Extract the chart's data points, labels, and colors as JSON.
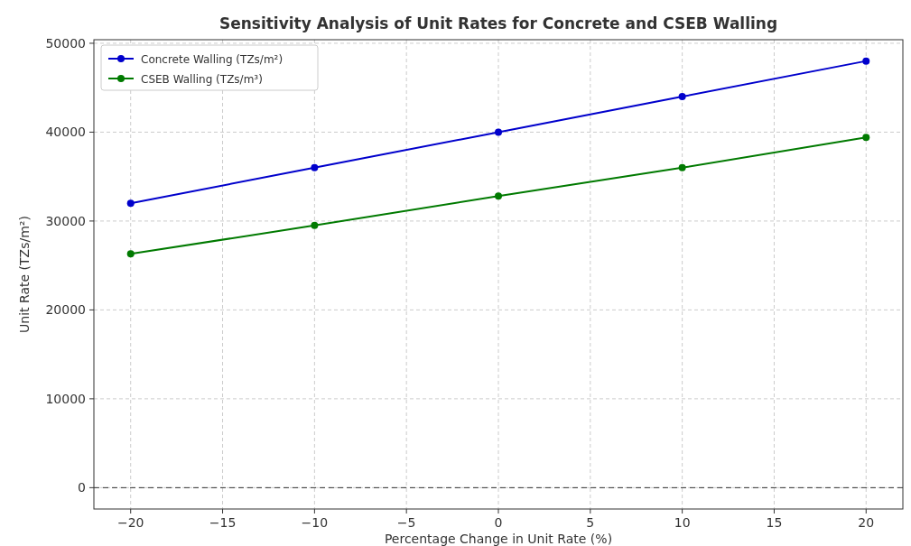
{
  "chart_data": {
    "type": "line",
    "title": "Sensitivity Analysis of Unit Rates for Concrete and CSEB Walling",
    "xlabel": "Percentage Change in Unit Rate (%)",
    "ylabel": "Unit Rate (TZs/m²)",
    "x": [
      -20,
      -10,
      0,
      10,
      20
    ],
    "series": [
      {
        "name": "Concrete Walling (TZs/m²)",
        "color": "#0000cc",
        "values": [
          32000,
          36000,
          40000,
          44000,
          48000
        ]
      },
      {
        "name": "CSEB Walling (TZs/m³)",
        "color": "#007a00",
        "values": [
          26300,
          29500,
          32800,
          36000,
          39400
        ]
      }
    ],
    "xlim": [
      -22,
      22
    ],
    "xticks": [
      {
        "value": -20,
        "label": "−20"
      },
      {
        "value": -15,
        "label": "−15"
      },
      {
        "value": -10,
        "label": "−10"
      },
      {
        "value": -5,
        "label": "−5"
      },
      0,
      5,
      10,
      15,
      20
    ],
    "ylim": [
      -2400,
      50400
    ],
    "yticks": [
      0,
      10000,
      20000,
      30000,
      40000,
      50000
    ],
    "ref_lines": [
      {
        "axis": "y",
        "value": 0,
        "color": "#333333",
        "line_style": "dashed"
      }
    ],
    "grid": true,
    "legend": "top left",
    "marker": "circle",
    "line_style": "solid"
  }
}
